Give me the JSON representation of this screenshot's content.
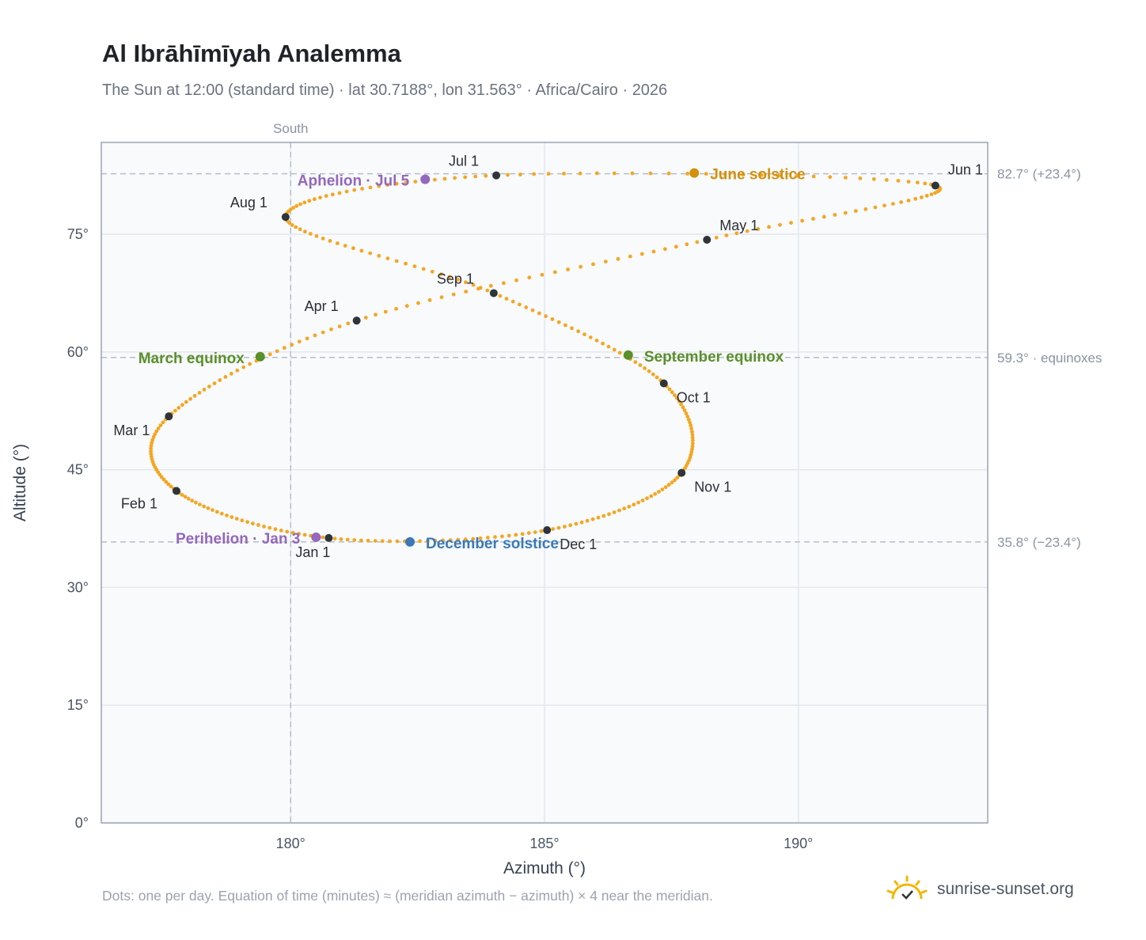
{
  "header": {
    "title": "Al Ibrāhīmīyah Analemma",
    "subtitle": "The Sun at 12:00 (standard time) · lat 30.7188°, lon 31.563° · Africa/Cairo · 2026"
  },
  "footer": {
    "note": "Dots: one per day. Equation of time (minutes) ≈ (meridian azimuth − azimuth) × 4 near the meridian.",
    "brand": "sunrise-sunset.org"
  },
  "colors": {
    "curve": "#f5a623",
    "month_dot": "#2f343b",
    "equinox": "#5b8f2a",
    "june_solstice": "#d4900a",
    "december_solstice": "#3b78b8",
    "apsis": "#9467bd",
    "plot_bg": "#f8fafc",
    "grid": "#e3e8ee",
    "ref_line": "#b5bec9"
  },
  "chart_data": {
    "type": "scatter",
    "title": "Al Ibrāhīmīyah Analemma",
    "xlabel": "Azimuth (°)",
    "ylabel": "Altitude (°)",
    "xlim": [
      176.27,
      193.73
    ],
    "ylim": [
      0,
      86.7
    ],
    "x_ticks": [
      {
        "v": 180,
        "label": "180°"
      },
      {
        "v": 185,
        "label": "185°"
      },
      {
        "v": 190,
        "label": "190°"
      }
    ],
    "y_ticks": [
      {
        "v": 0,
        "label": "0°"
      },
      {
        "v": 15,
        "label": "15°"
      },
      {
        "v": 30,
        "label": "30°"
      },
      {
        "v": 45,
        "label": "45°"
      },
      {
        "v": 60,
        "label": "60°"
      },
      {
        "v": 75,
        "label": "75°"
      }
    ],
    "grid": true,
    "meridian": {
      "azimuth": 180,
      "label": "South"
    },
    "reference_lines": [
      {
        "altitude": 82.7,
        "label": "82.7° (+23.4°)"
      },
      {
        "altitude": 59.3,
        "label": "59.3° · equinoxes"
      },
      {
        "altitude": 35.8,
        "label": "35.8° (−23.4°)"
      }
    ],
    "series": [
      {
        "kind": "daily",
        "points": [
          [
            180.75,
            36.3
          ],
          [
            177.75,
            42.3
          ],
          [
            177.6,
            51.8
          ],
          [
            181.3,
            64.0
          ],
          [
            188.2,
            74.3
          ],
          [
            192.7,
            81.2
          ],
          [
            184.05,
            82.5
          ],
          [
            179.9,
            77.2
          ],
          [
            184.0,
            67.5
          ],
          [
            187.35,
            56.0
          ],
          [
            187.7,
            44.6
          ],
          [
            185.05,
            37.3
          ],
          [
            180.75,
            36.3
          ]
        ]
      }
    ],
    "month_markers": [
      {
        "label": "Jan 1",
        "x": 180.75,
        "y": 36.3
      },
      {
        "label": "Feb 1",
        "x": 177.75,
        "y": 42.3
      },
      {
        "label": "Mar 1",
        "x": 177.6,
        "y": 51.8
      },
      {
        "label": "Apr 1",
        "x": 181.3,
        "y": 64.0
      },
      {
        "label": "May 1",
        "x": 188.2,
        "y": 74.3
      },
      {
        "label": "Jun 1",
        "x": 192.7,
        "y": 81.2
      },
      {
        "label": "Jul 1",
        "x": 184.05,
        "y": 82.5
      },
      {
        "label": "Aug 1",
        "x": 179.9,
        "y": 77.2
      },
      {
        "label": "Sep 1",
        "x": 184.0,
        "y": 67.5
      },
      {
        "label": "Oct 1",
        "x": 187.35,
        "y": 56.0
      },
      {
        "label": "Nov 1",
        "x": 187.7,
        "y": 44.6
      },
      {
        "label": "Dec 1",
        "x": 185.05,
        "y": 37.3
      }
    ],
    "events": [
      {
        "label": "March equinox",
        "x": 179.4,
        "y": 59.4,
        "color": "#5b8f2a"
      },
      {
        "label": "June solstice",
        "x": 187.95,
        "y": 82.8,
        "color": "#d4900a"
      },
      {
        "label": "September equinox",
        "x": 186.65,
        "y": 59.6,
        "color": "#5b8f2a"
      },
      {
        "label": "December solstice",
        "x": 182.35,
        "y": 35.8,
        "color": "#3b78b8"
      },
      {
        "label": "Perihelion · Jan 3",
        "x": 180.5,
        "y": 36.4,
        "color": "#9467bd"
      },
      {
        "label": "Aphelion · Jul 5",
        "x": 182.65,
        "y": 82.0,
        "color": "#9467bd"
      }
    ]
  }
}
